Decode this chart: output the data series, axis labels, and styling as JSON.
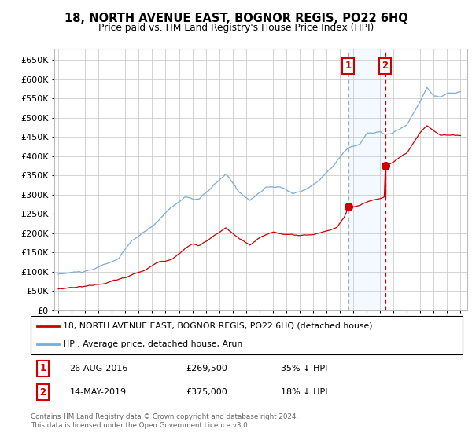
{
  "title": "18, NORTH AVENUE EAST, BOGNOR REGIS, PO22 6HQ",
  "subtitle": "Price paid vs. HM Land Registry's House Price Index (HPI)",
  "legend_line1": "18, NORTH AVENUE EAST, BOGNOR REGIS, PO22 6HQ (detached house)",
  "legend_line2": "HPI: Average price, detached house, Arun",
  "footnote": "Contains HM Land Registry data © Crown copyright and database right 2024.\nThis data is licensed under the Open Government Licence v3.0.",
  "transaction1": {
    "label": "1",
    "date": "26-AUG-2016",
    "price": 269500,
    "pct": "35% ↓ HPI"
  },
  "transaction2": {
    "label": "2",
    "date": "14-MAY-2019",
    "price": 375000,
    "pct": "18% ↓ HPI"
  },
  "red_color": "#cc0000",
  "blue_color": "#7aacdc",
  "background_color": "#ffffff",
  "grid_color": "#cccccc",
  "shaded_region_color": "#ddeeff",
  "ylim": [
    0,
    680000
  ],
  "yticks": [
    0,
    50000,
    100000,
    150000,
    200000,
    250000,
    300000,
    350000,
    400000,
    450000,
    500000,
    550000,
    600000,
    650000
  ],
  "t1_year": 2016.622,
  "t2_year": 2019.371,
  "t1_price": 269500,
  "t2_price": 375000,
  "t1_red_line_low": 295000,
  "t2_red_line_low": 295000
}
